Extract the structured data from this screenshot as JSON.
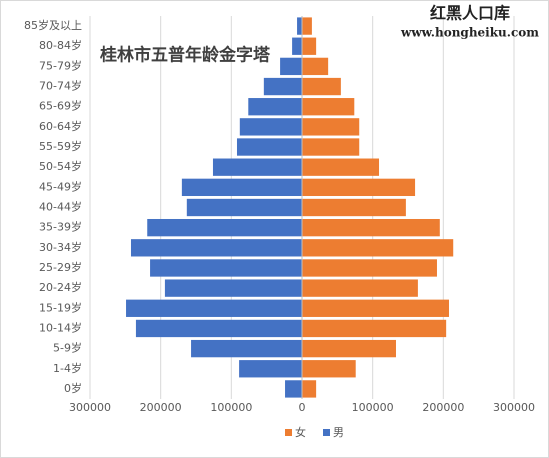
{
  "chart_data": {
    "type": "bar",
    "orientation": "horizontal",
    "title": "桂林市五普年龄金字塔",
    "watermark": "红黑人口库",
    "watermark_url": "www.hongheiku.com",
    "categories": [
      "0岁",
      "1-4岁",
      "5-9岁",
      "10-14岁",
      "15-19岁",
      "20-24岁",
      "25-29岁",
      "30-34岁",
      "35-39岁",
      "40-44岁",
      "45-49岁",
      "50-54岁",
      "55-59岁",
      "60-64岁",
      "65-69岁",
      "70-74岁",
      "75-79岁",
      "80-84岁",
      "85岁及以上"
    ],
    "series": [
      {
        "name": "女",
        "color": "#ed7d31",
        "values": [
          20000,
          76000,
          133000,
          204000,
          208000,
          164000,
          191000,
          214000,
          195000,
          147000,
          160000,
          109000,
          81000,
          81000,
          74000,
          55000,
          37000,
          20000,
          14000
        ]
      },
      {
        "name": "男",
        "color": "#4472c4",
        "values": [
          -24000,
          -89000,
          -157000,
          -235000,
          -249000,
          -194000,
          -215000,
          -242000,
          -219000,
          -163000,
          -170000,
          -126000,
          -92000,
          -88000,
          -76000,
          -54000,
          -31000,
          -14000,
          -7000
        ]
      }
    ],
    "xlim": [
      -300000,
      300000
    ],
    "xticks": [
      {
        "value": -300000,
        "label": "300000"
      },
      {
        "value": -200000,
        "label": "200000"
      },
      {
        "value": -100000,
        "label": "100000"
      },
      0,
      100000,
      200000,
      300000
    ],
    "grid": true,
    "legend": "bottom"
  }
}
